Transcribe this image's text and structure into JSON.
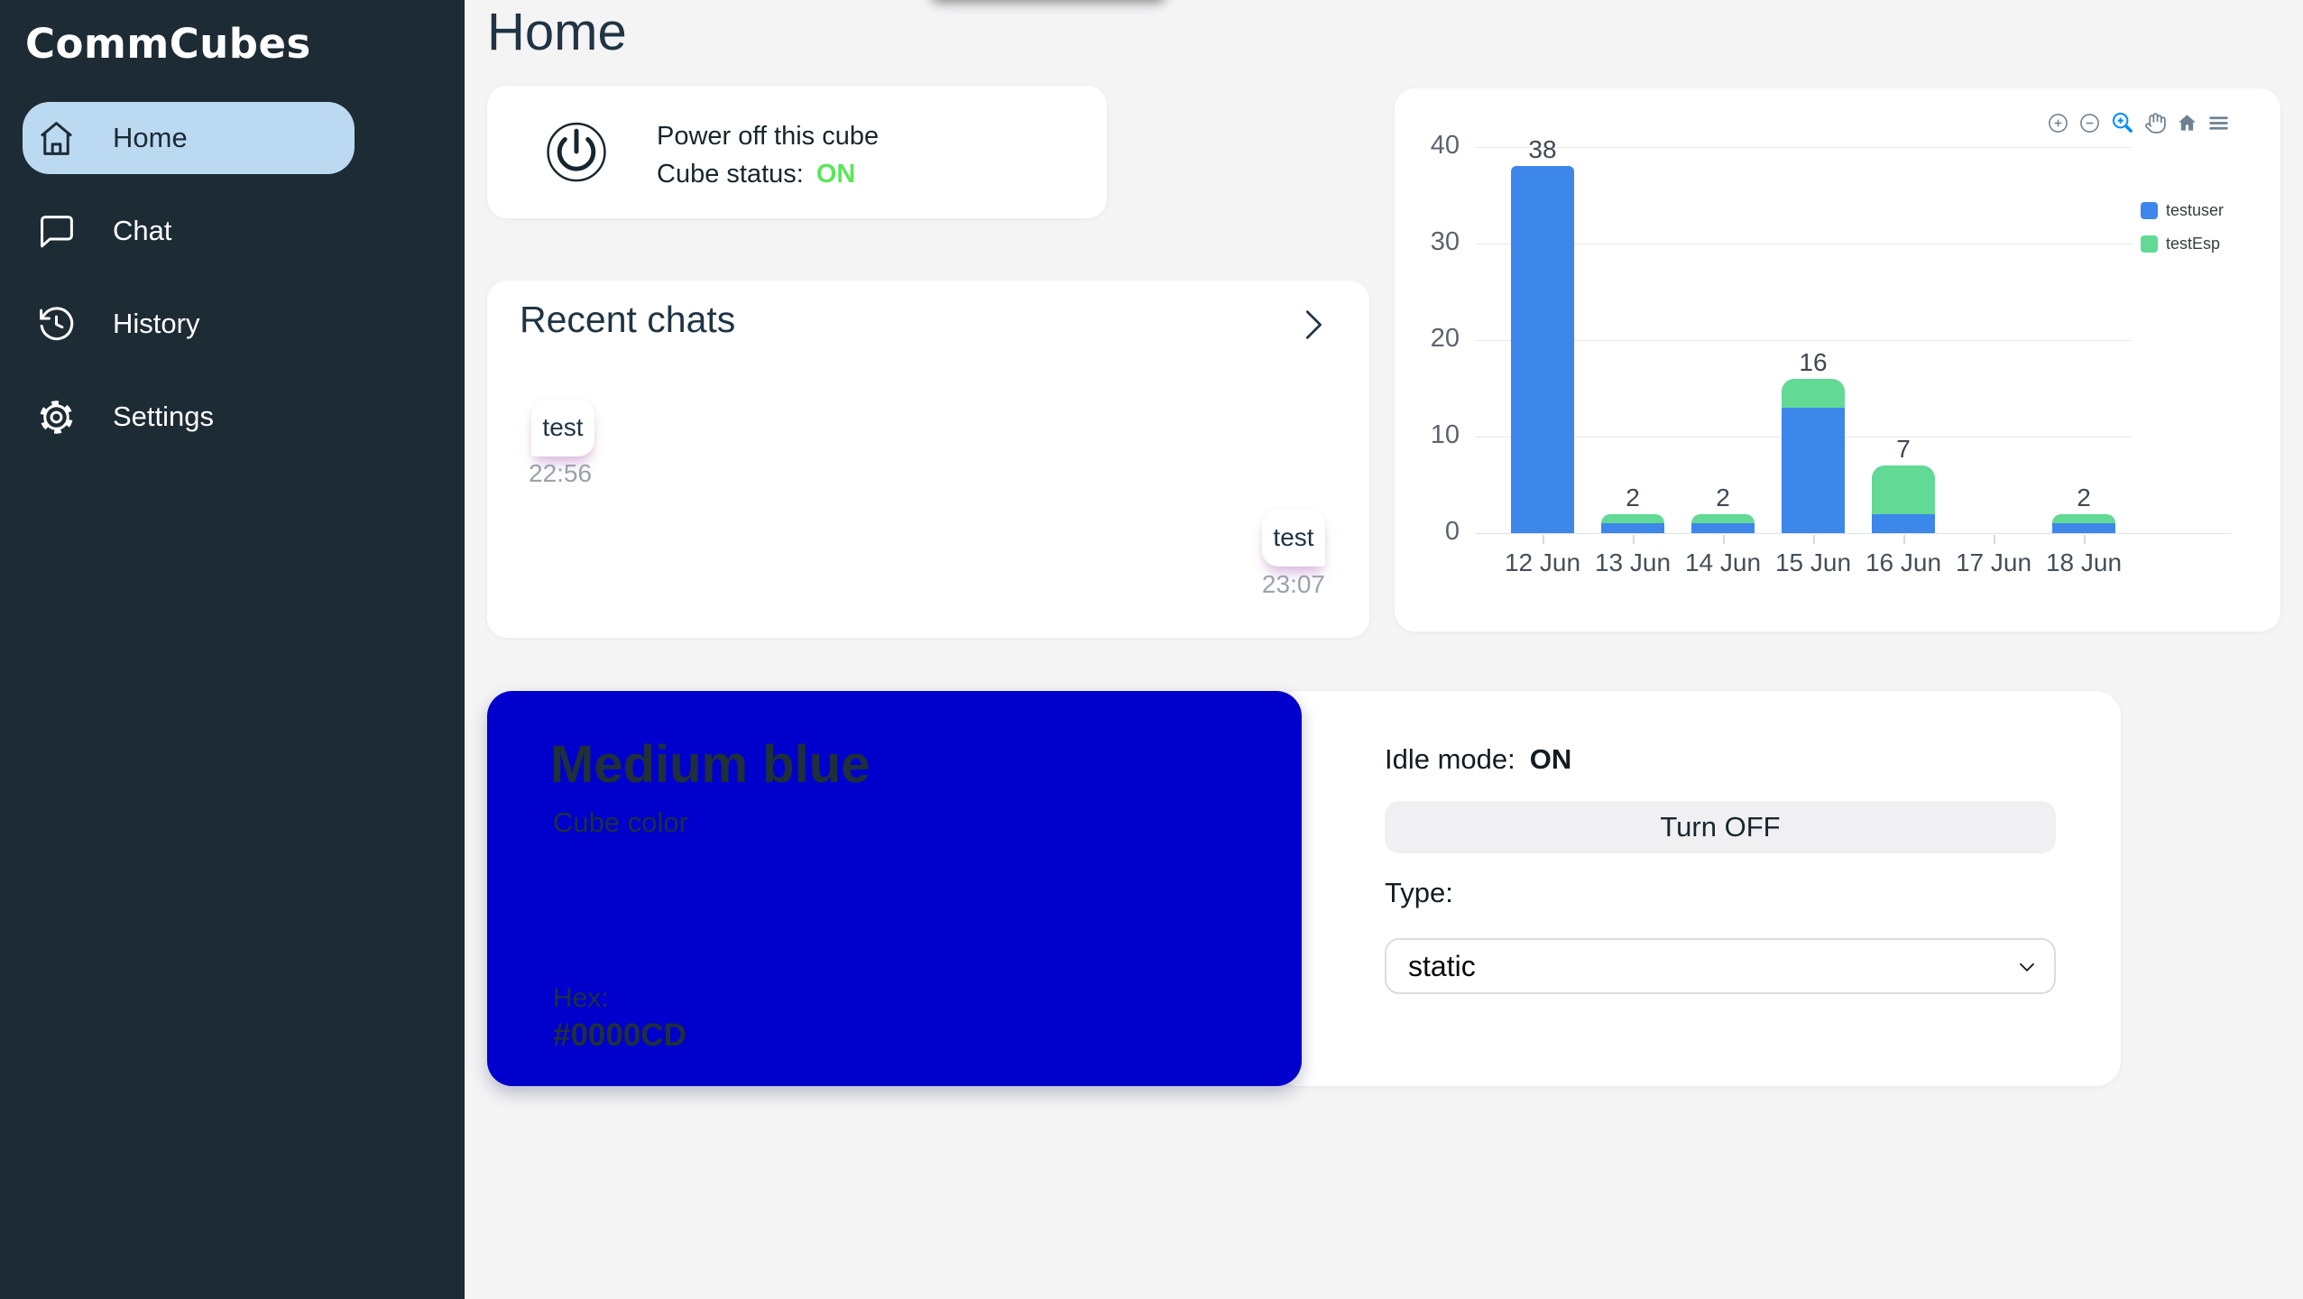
{
  "app_title": "CommCubes",
  "sidebar": {
    "logo": "CommCubes",
    "items": [
      {
        "label": "Home",
        "icon": "home-icon",
        "active": true
      },
      {
        "label": "Chat",
        "icon": "chat-icon",
        "active": false
      },
      {
        "label": "History",
        "icon": "history-icon",
        "active": false
      },
      {
        "label": "Settings",
        "icon": "settings-icon",
        "active": false
      }
    ],
    "active_pill_color": "#bcd9f2"
  },
  "page": {
    "title": "Home"
  },
  "power_card": {
    "icon": "power-icon",
    "title": "Power off this cube",
    "status_label": "Cube status:",
    "status_value": "ON",
    "status_color": "#5ce65c"
  },
  "recent_chats": {
    "title": "Recent chats",
    "chevron_icon": "chevron-right-icon",
    "messages": [
      {
        "text": "test",
        "time": "22:56",
        "side": "left"
      },
      {
        "text": "test",
        "time": "23:07",
        "side": "right"
      }
    ]
  },
  "chart_data": {
    "type": "bar",
    "stacked": true,
    "title": "",
    "xlabel": "",
    "ylabel": "",
    "categories": [
      "12 Jun",
      "13 Jun",
      "14 Jun",
      "15 Jun",
      "16 Jun",
      "17 Jun",
      "18 Jun"
    ],
    "series": [
      {
        "name": "testuser",
        "color": "#3d87ea",
        "values": [
          38,
          1,
          1,
          13,
          2,
          0,
          1
        ]
      },
      {
        "name": "testEsp",
        "color": "#62d995",
        "values": [
          0,
          1,
          1,
          3,
          5,
          0,
          1
        ]
      }
    ],
    "totals": [
      38,
      2,
      2,
      16,
      7,
      0,
      2
    ],
    "ylim": [
      0,
      40
    ],
    "yticks": [
      0,
      10,
      20,
      30,
      40
    ],
    "grid": true,
    "legend_position": "right",
    "toolbar": [
      "zoom-in-icon",
      "zoom-out-icon",
      "selection-zoom-icon",
      "pan-icon",
      "reset-home-icon",
      "menu-icon"
    ],
    "active_tool": "selection-zoom-icon",
    "active_tool_color": "#008FFB"
  },
  "color_card": {
    "name": "Medium blue",
    "subtitle": "Cube color",
    "hex_label": "Hex:",
    "hex_value": "#0000CD",
    "background": "#0000CD"
  },
  "idle_card": {
    "label": "Idle mode:",
    "value": "ON",
    "button_label": "Turn OFF",
    "type_label": "Type:",
    "type_value": "static"
  }
}
